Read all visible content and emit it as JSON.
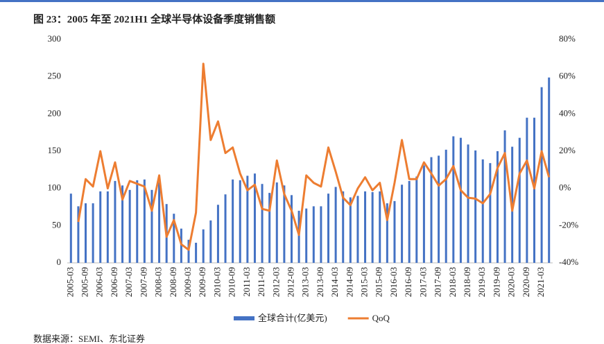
{
  "chart_data": {
    "type": "bar_line",
    "title": "图 23：2005 年至 2021H1 全球半导体设备季度销售额",
    "source": "数据来源：SEMI、东北证券",
    "categories": [
      "2005-03",
      null,
      "2005-09",
      null,
      "2006-03",
      null,
      "2006-09",
      null,
      "2007-03",
      null,
      "2007-09",
      null,
      "2008-03",
      null,
      "2008-09",
      null,
      "2009-03",
      null,
      "2009-09",
      null,
      "2010-03",
      null,
      "2010-09",
      null,
      "2011-03",
      null,
      "2011-09",
      null,
      "2012-03",
      null,
      "2012-09",
      null,
      "2013-03",
      null,
      "2013-09",
      null,
      "2014-03",
      null,
      "2014-09",
      null,
      "2015-03",
      null,
      "2015-09",
      null,
      "2016-03",
      null,
      "2016-09",
      null,
      "2017-03",
      null,
      "2017-09",
      null,
      "2018-03",
      null,
      "2018-09",
      null,
      "2019-03",
      null,
      "2019-09",
      null,
      "2020-03",
      null,
      "2020-09",
      null,
      "2021-03",
      null
    ],
    "series": [
      {
        "name": "全球合计(亿美元)",
        "color": "#4472c4",
        "kind": "bar",
        "values": [
          93,
          76,
          80,
          80,
          96,
          96,
          110,
          104,
          98,
          111,
          112,
          98,
          108,
          79,
          66,
          46,
          31,
          27,
          45,
          57,
          78,
          92,
          112,
          111,
          117,
          120,
          106,
          94,
          108,
          104,
          91,
          70,
          73,
          76,
          76,
          93,
          102,
          96,
          88,
          90,
          96,
          95,
          96,
          80,
          83,
          105,
          110,
          116,
          131,
          142,
          144,
          152,
          170,
          168,
          159,
          151,
          139,
          134,
          150,
          178,
          156,
          168,
          195,
          195,
          236,
          249
        ]
      },
      {
        "name": "QoQ",
        "color": "#ed7d31",
        "kind": "line",
        "axis": "y2",
        "values": [
          null,
          -18,
          5,
          1,
          20,
          0,
          14,
          -6,
          4,
          2.5,
          1,
          -12,
          7,
          -26,
          -17,
          -30,
          -33,
          -13,
          67,
          26,
          36,
          19,
          22,
          8,
          -1,
          2,
          -11,
          -12,
          15,
          -3,
          -12,
          -25,
          7,
          3,
          1,
          22,
          9,
          -5,
          -9,
          0,
          6,
          -1,
          3,
          -17,
          3,
          26,
          5,
          5,
          14,
          8,
          1.5,
          5,
          12,
          -1,
          -5,
          -5.5,
          -8,
          -3,
          11,
          19,
          -12,
          8,
          15,
          0,
          20,
          6
        ]
      }
    ],
    "ylim": [
      0,
      300
    ],
    "yticks": [
      0,
      50,
      100,
      150,
      200,
      250,
      300
    ],
    "y2lim": [
      -40,
      80
    ],
    "y2ticks": [
      {
        "value": -40,
        "label": "-40%"
      },
      {
        "value": -20,
        "label": "-20%"
      },
      {
        "value": 0,
        "label": "0%"
      },
      {
        "value": 20,
        "label": "20%"
      },
      {
        "value": 40,
        "label": "40%"
      },
      {
        "value": 60,
        "label": "60%"
      },
      {
        "value": 80,
        "label": "80%"
      }
    ],
    "legend": "bottom"
  }
}
